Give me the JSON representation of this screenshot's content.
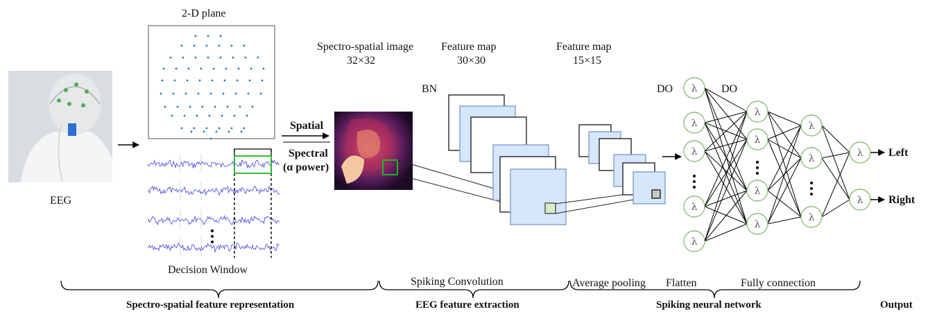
{
  "eeg": {
    "label": "EEG"
  },
  "plane": {
    "title": "2-D  plane"
  },
  "decision_window": {
    "label": "Decision Window"
  },
  "spatial": {
    "label": "Spatial"
  },
  "spectral": {
    "label1": "Spectral",
    "label2": "(α power)"
  },
  "image": {
    "title": "Spectro-spatial image",
    "size": "32×32"
  },
  "fmap1": {
    "title": "Feature map",
    "size": "30×30"
  },
  "fmap2": {
    "title": "Feature map",
    "size": "15×15"
  },
  "bn": {
    "label": "BN"
  },
  "do1": {
    "label": "DO"
  },
  "do2": {
    "label": "DO"
  },
  "outputs": {
    "left": "Left",
    "right": "Right"
  },
  "stages": {
    "spiking_convolution": "Spiking Convolution",
    "average_pooling": "Average pooling",
    "flatten": "Flatten",
    "fully_connection": "Fully connection"
  },
  "sections": {
    "representation": "Spectro-spatial feature representation",
    "extraction": "EEG feature extraction",
    "snn": "Spiking neural network",
    "output": "Output"
  },
  "neuron_symbol": "λ",
  "colors": {
    "neuron_stroke": "#8dbf7a",
    "feature_fill": "#d6e6fb",
    "feature_stroke": "#6e90c0",
    "signal": "#3f3fe0",
    "electrode": "#1f77b4",
    "highlight": "#22b422"
  }
}
